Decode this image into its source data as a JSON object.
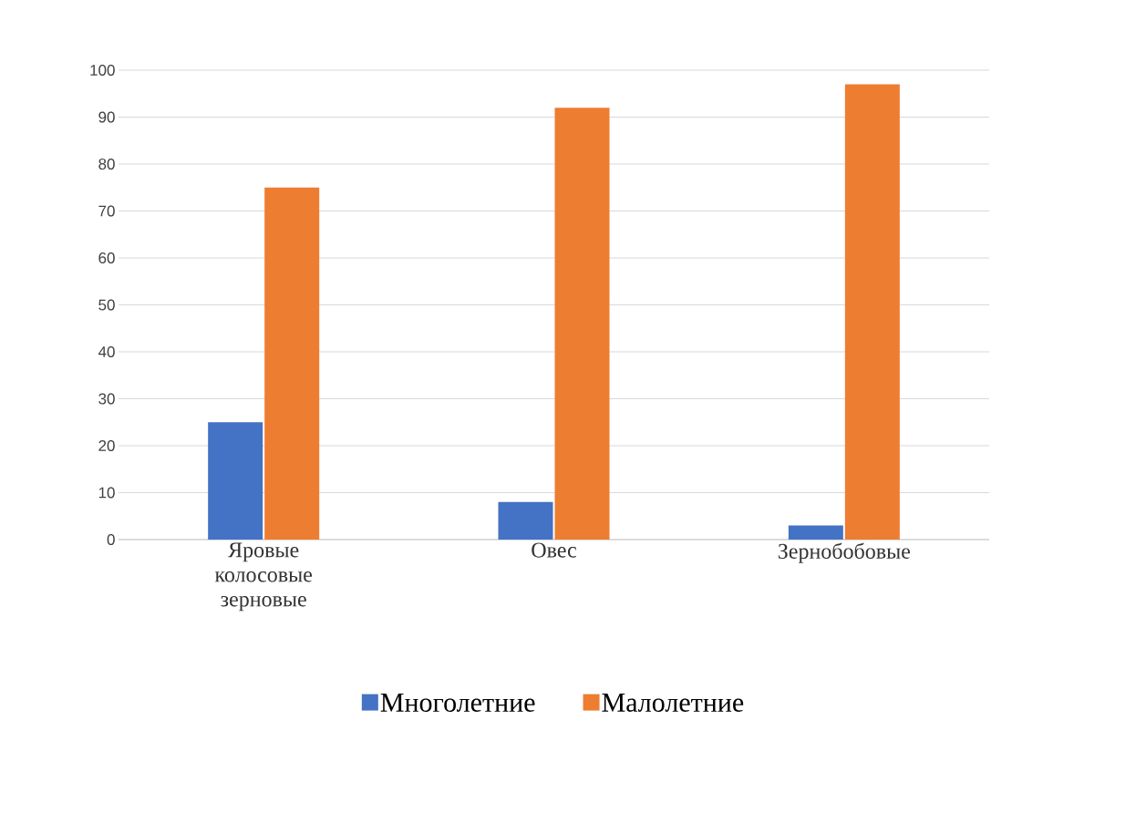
{
  "chart_data": {
    "type": "bar",
    "categories": [
      "Яровые колосовые зерновые",
      "Овес",
      "Зернобобовые"
    ],
    "series": [
      {
        "name": "Многолетние",
        "color": "#4472c4",
        "values": [
          25,
          8,
          3
        ]
      },
      {
        "name": "Малолетние",
        "color": "#ed7d31",
        "values": [
          75,
          92,
          97
        ]
      }
    ],
    "ylim": [
      0,
      100
    ],
    "yticks": [
      0,
      10,
      20,
      30,
      40,
      50,
      60,
      70,
      80,
      90,
      100
    ],
    "grid": "y",
    "legend": "bottom"
  }
}
